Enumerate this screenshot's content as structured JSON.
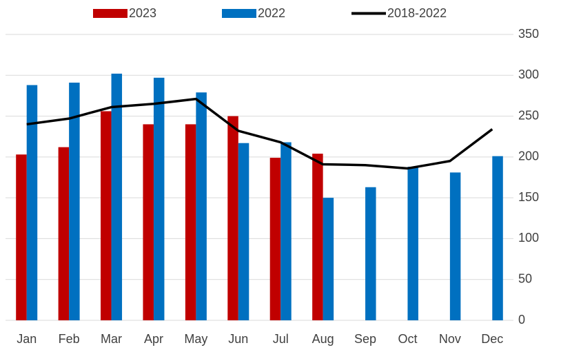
{
  "chart_data": {
    "type": "bar",
    "categories": [
      "Jan",
      "Feb",
      "Mar",
      "Apr",
      "May",
      "Jun",
      "Jul",
      "Aug",
      "Sep",
      "Oct",
      "Nov",
      "Dec"
    ],
    "series": [
      {
        "name": "2023",
        "type": "bar",
        "color": "#c00000",
        "values": [
          203,
          212,
          256,
          240,
          240,
          250,
          199,
          204,
          null,
          null,
          null,
          null
        ]
      },
      {
        "name": "2022",
        "type": "bar",
        "color": "#0070c0",
        "values": [
          288,
          291,
          302,
          297,
          279,
          217,
          218,
          150,
          163,
          188,
          181,
          201
        ]
      },
      {
        "name": "2018-2022",
        "type": "line",
        "color": "#000000",
        "values": [
          240,
          247,
          261,
          265,
          271,
          232,
          218,
          191,
          190,
          186,
          195,
          234
        ]
      }
    ],
    "ylim": [
      0,
      350
    ],
    "yticks": [
      0,
      50,
      100,
      150,
      200,
      250,
      300,
      350
    ],
    "grid": true
  }
}
